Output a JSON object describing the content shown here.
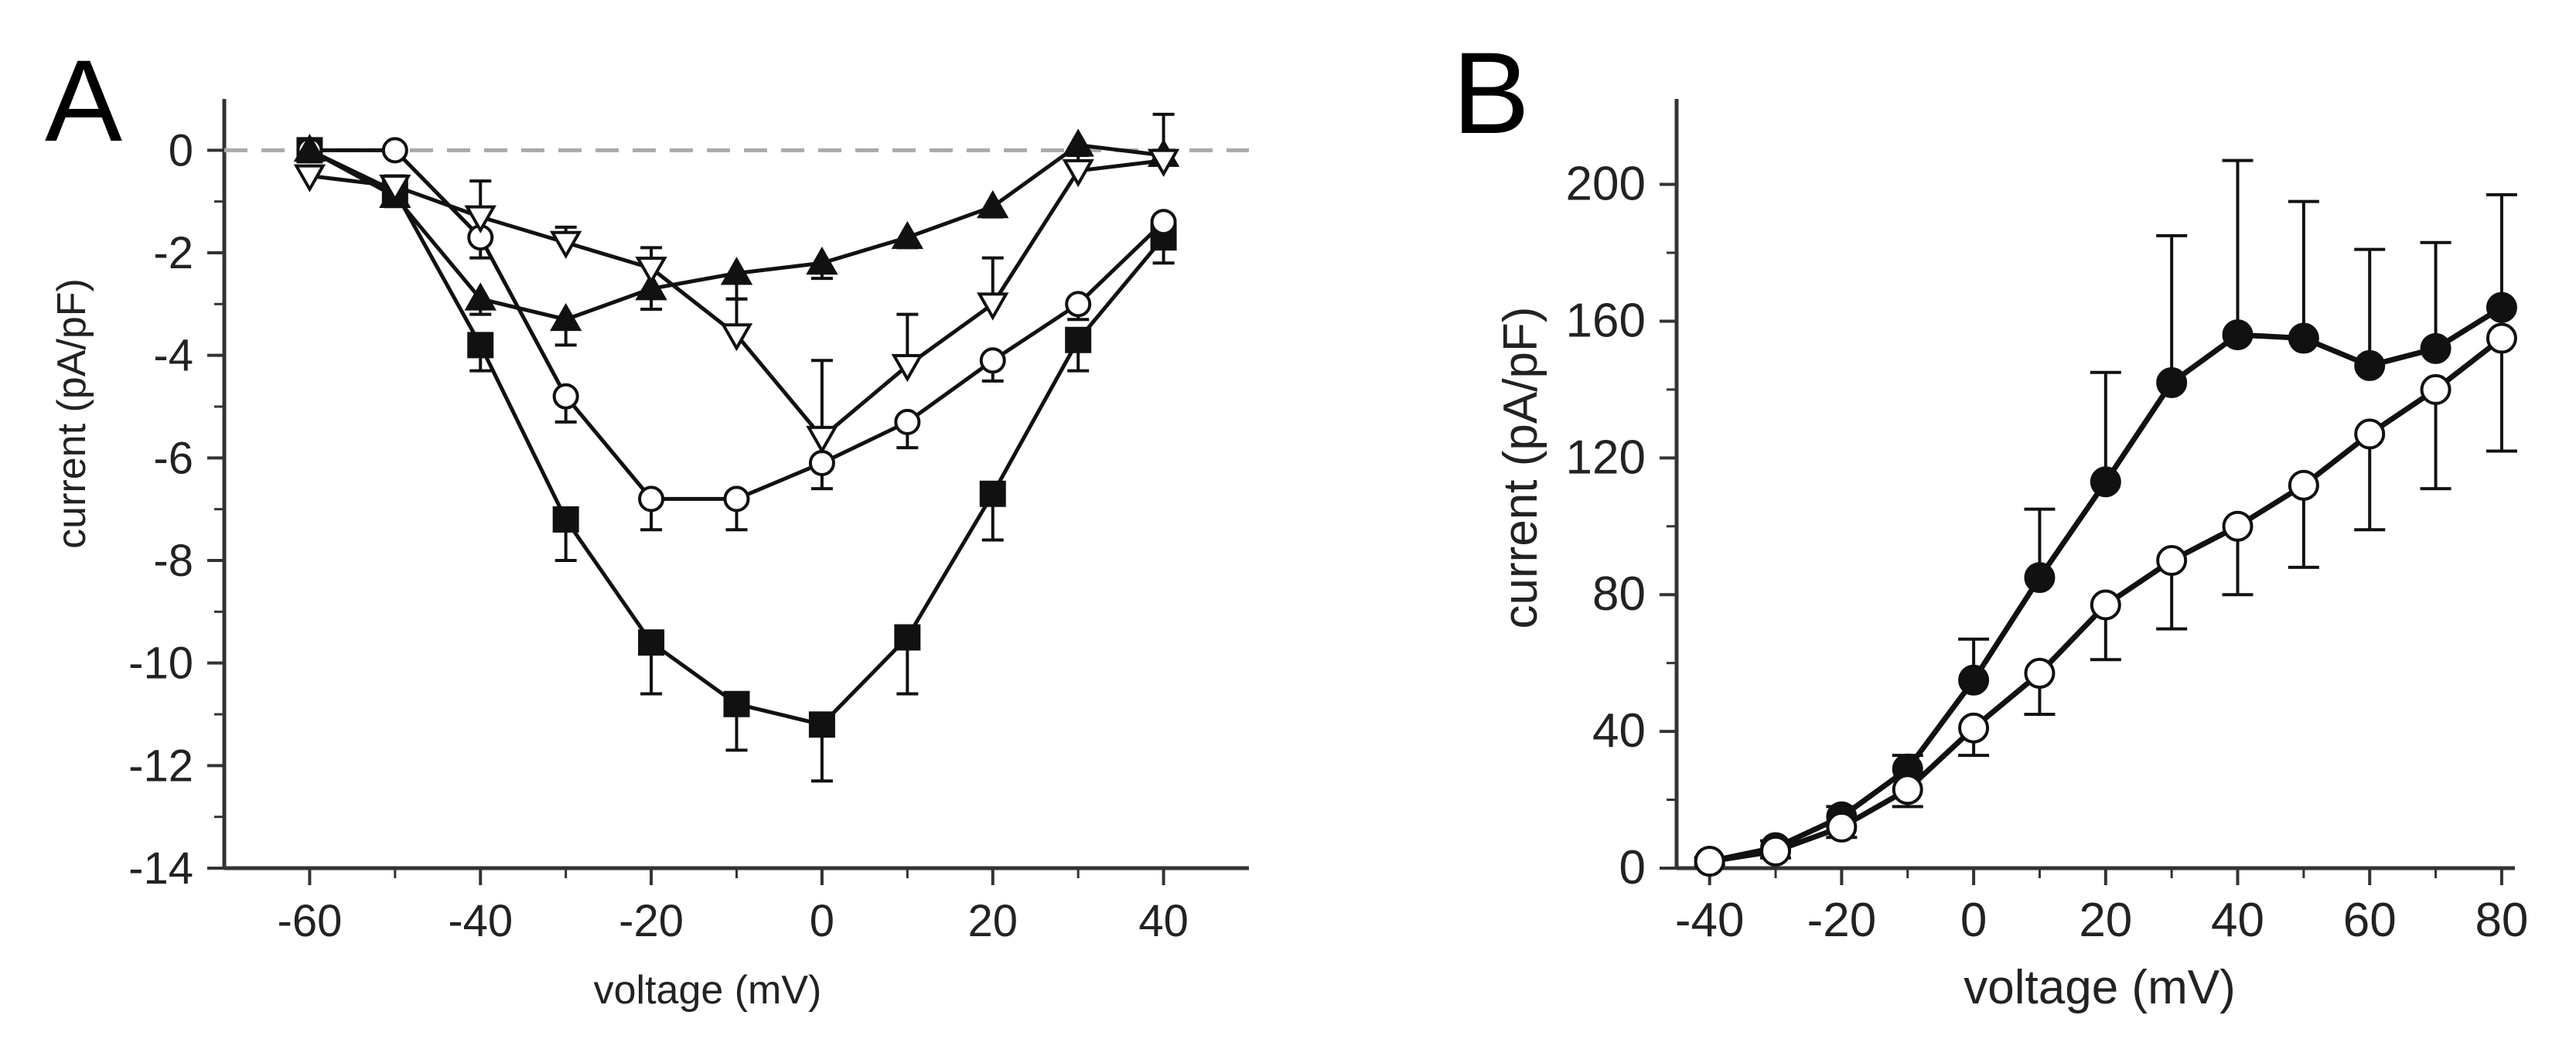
{
  "chart_data": [
    {
      "panel": "A",
      "type": "line",
      "xlabel": "voltage (mV)",
      "ylabel": "current (pA/pF)",
      "xlim": [
        -70,
        50
      ],
      "ylim": [
        -14,
        1
      ],
      "xticks": [
        -60,
        -40,
        -20,
        0,
        20,
        40
      ],
      "yticks": [
        0,
        -2,
        -4,
        -6,
        -8,
        -10,
        -12,
        -14
      ],
      "reference_line": 0,
      "series": [
        {
          "name": "filled squares",
          "marker": "square",
          "filled": true,
          "x": [
            -60,
            -50,
            -40,
            -30,
            -20,
            -10,
            0,
            10,
            20,
            30,
            40
          ],
          "y": [
            0,
            -0.8,
            -3.8,
            -7.2,
            -9.6,
            -10.8,
            -11.2,
            -9.5,
            -6.7,
            -3.7,
            -1.7
          ],
          "err": [
            0,
            0.2,
            0.5,
            0.8,
            1.0,
            0.9,
            1.1,
            1.1,
            0.9,
            0.6,
            0.5
          ]
        },
        {
          "name": "open circles",
          "marker": "circle",
          "filled": false,
          "x": [
            -60,
            -50,
            -40,
            -30,
            -20,
            -10,
            0,
            10,
            20,
            30,
            40
          ],
          "y": [
            0,
            0,
            -1.7,
            -4.8,
            -6.8,
            -6.8,
            -6.1,
            -5.3,
            -4.1,
            -3.0,
            -1.4
          ],
          "err": [
            0,
            0,
            0.4,
            0.5,
            0.6,
            0.6,
            0.5,
            0.5,
            0.4,
            0.3,
            0.3
          ]
        },
        {
          "name": "filled triangles",
          "marker": "triangle-up",
          "filled": true,
          "x": [
            -60,
            -50,
            -40,
            -30,
            -20,
            -10,
            0,
            10,
            20,
            30,
            40
          ],
          "y": [
            0,
            -0.9,
            -2.9,
            -3.3,
            -2.7,
            -2.4,
            -2.2,
            -1.7,
            -1.1,
            0.1,
            -0.1
          ],
          "err": [
            0,
            0.2,
            0.3,
            0.5,
            0.4,
            0.5,
            0.3,
            0.2,
            0.2,
            0.1,
            0.1
          ]
        },
        {
          "name": "open triangles",
          "marker": "triangle-down",
          "filled": false,
          "x": [
            -60,
            -50,
            -40,
            -30,
            -20,
            -10,
            0,
            10,
            20,
            30,
            40
          ],
          "y": [
            -0.5,
            -0.7,
            -1.3,
            -1.8,
            -2.3,
            -3.6,
            -5.6,
            -4.2,
            -3.0,
            -0.4,
            -0.2
          ],
          "err": [
            0,
            0.2,
            0.7,
            0.3,
            0.4,
            0.7,
            1.5,
            1.0,
            0.9,
            0.3,
            0.9
          ]
        }
      ]
    },
    {
      "panel": "B",
      "type": "line",
      "xlabel": "voltage (mV)",
      "ylabel": "current (pA/pF)",
      "xlim": [
        -45,
        82
      ],
      "ylim": [
        0,
        225
      ],
      "xticks": [
        -40,
        -20,
        0,
        20,
        40,
        60,
        80
      ],
      "yticks": [
        0,
        40,
        80,
        120,
        160,
        200
      ],
      "series": [
        {
          "name": "filled circles",
          "marker": "circle",
          "filled": true,
          "x": [
            -40,
            -30,
            -20,
            -10,
            0,
            10,
            20,
            30,
            40,
            50,
            60,
            70,
            80
          ],
          "y": [
            2,
            6,
            15,
            29,
            55,
            85,
            113,
            142,
            156,
            155,
            147,
            152,
            164
          ],
          "err": [
            1,
            2,
            3,
            4,
            12,
            20,
            32,
            43,
            51,
            40,
            34,
            31,
            33
          ]
        },
        {
          "name": "open circles",
          "marker": "circle",
          "filled": false,
          "x": [
            -40,
            -30,
            -20,
            -10,
            0,
            10,
            20,
            30,
            40,
            50,
            60,
            70,
            80
          ],
          "y": [
            2,
            5,
            12,
            23,
            41,
            57,
            77,
            90,
            100,
            112,
            127,
            140,
            155
          ],
          "err": [
            1,
            2,
            3,
            5,
            8,
            12,
            16,
            20,
            20,
            24,
            28,
            29,
            33
          ]
        }
      ]
    }
  ]
}
